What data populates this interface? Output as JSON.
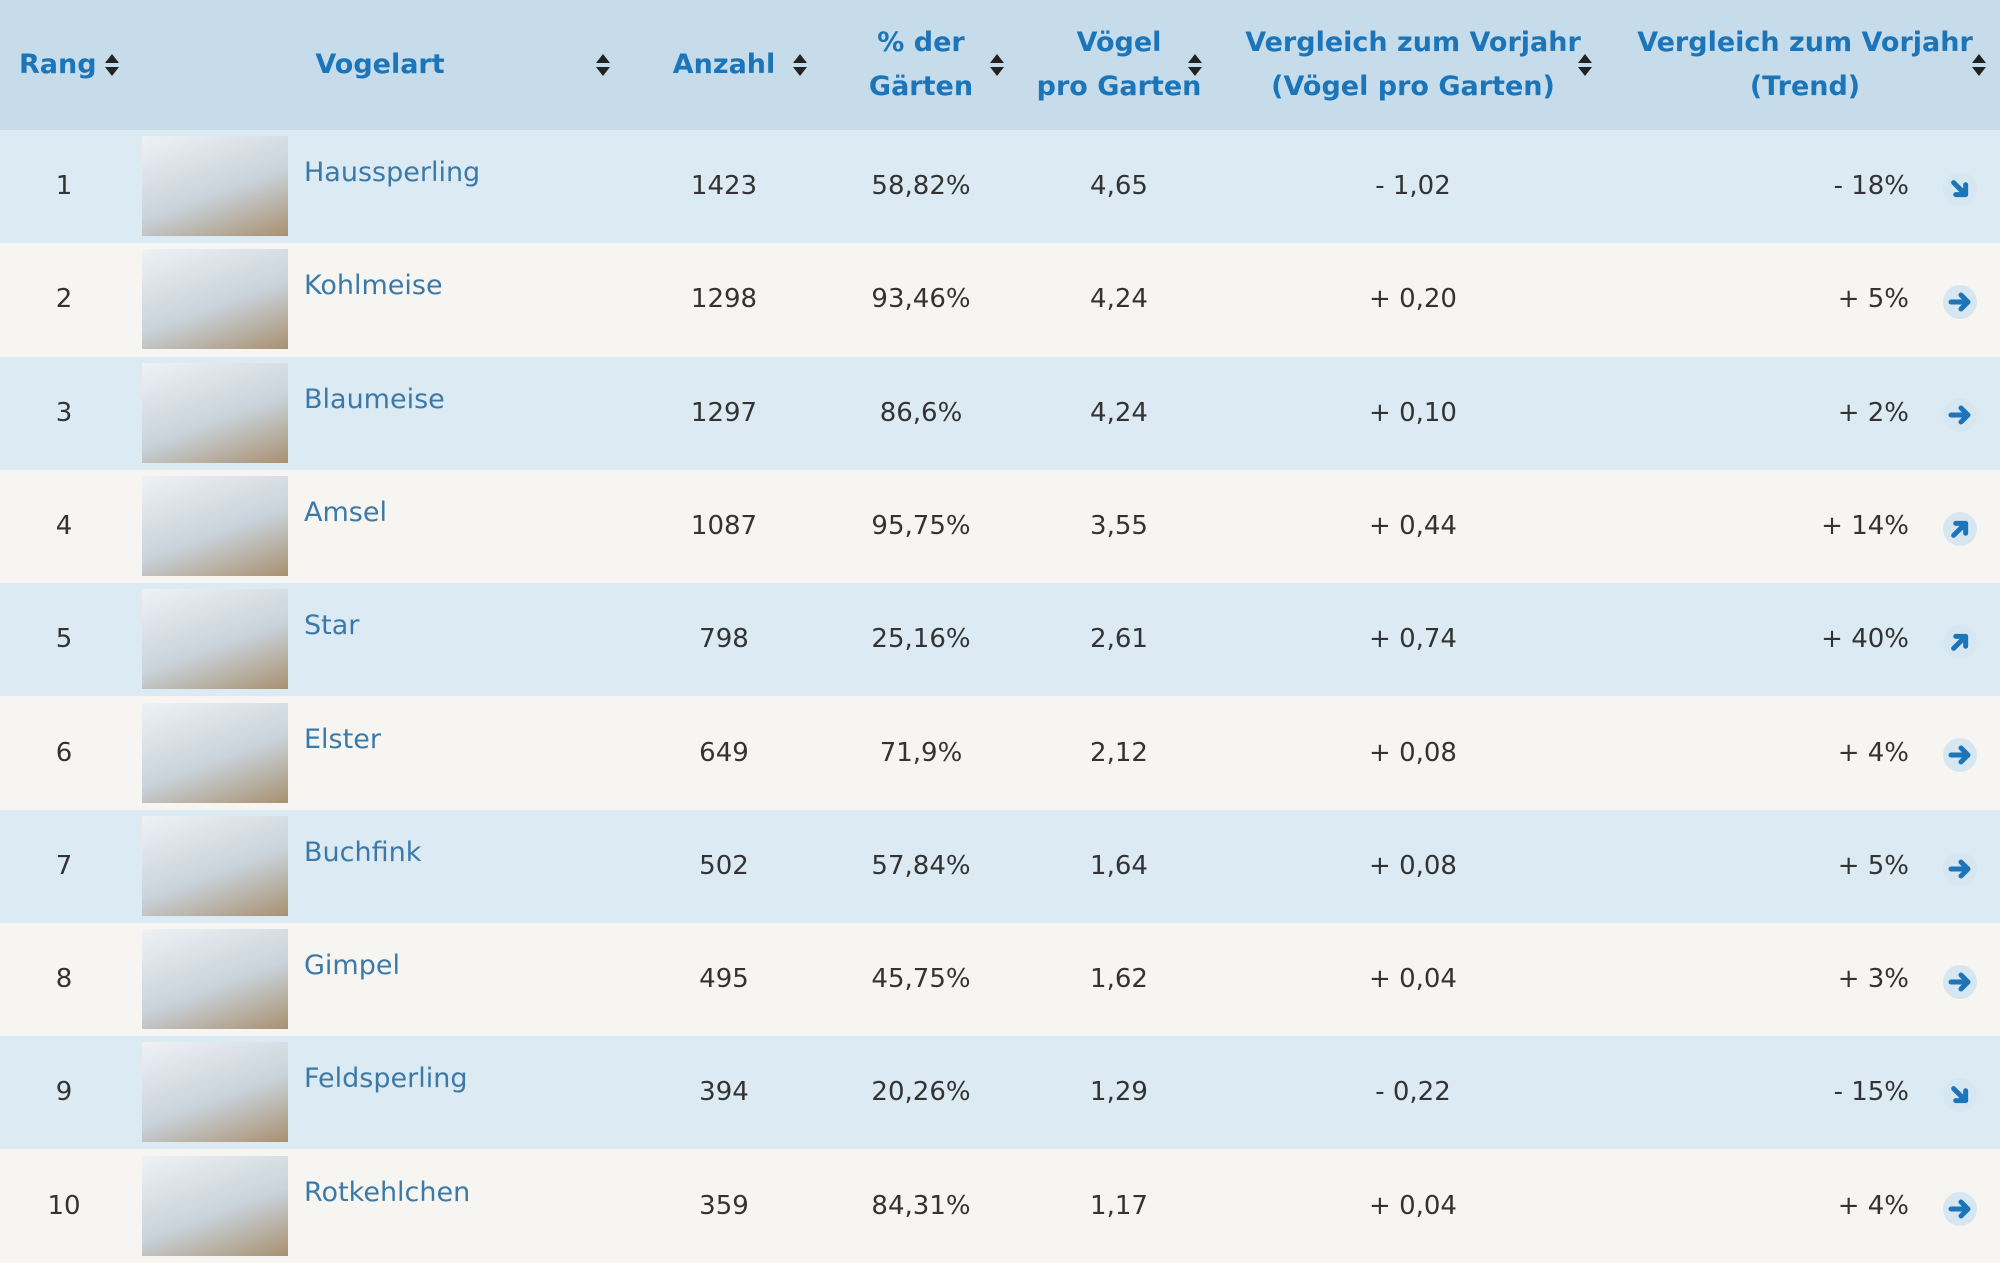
{
  "table": {
    "headers": [
      [
        "Rang"
      ],
      [
        "Vogelart"
      ],
      [
        "Anzahl"
      ],
      [
        "% der",
        "Gärten"
      ],
      [
        "Vögel",
        "pro Garten"
      ],
      [
        "Vergleich zum Vorjahr",
        "(Vögel pro Garten)"
      ],
      [
        "Vergleich zum Vorjahr",
        "(Trend)"
      ]
    ],
    "rows": [
      [
        "1",
        "Haussperling",
        "1423",
        "58,82%",
        "4,65",
        "- 1,02",
        "- 18%"
      ],
      [
        "2",
        "Kohlmeise",
        "1298",
        "93,46%",
        "4,24",
        "+ 0,20",
        "+ 5%"
      ],
      [
        "3",
        "Blaumeise",
        "1297",
        "86,6%",
        "4,24",
        "+ 0,10",
        "+ 2%"
      ],
      [
        "4",
        "Amsel",
        "1087",
        "95,75%",
        "3,55",
        "+ 0,44",
        "+ 14%"
      ],
      [
        "5",
        "Star",
        "798",
        "25,16%",
        "2,61",
        "+ 0,74",
        "+ 40%"
      ],
      [
        "6",
        "Elster",
        "649",
        "71,9%",
        "2,12",
        "+ 0,08",
        "+ 4%"
      ],
      [
        "7",
        "Buchfink",
        "502",
        "57,84%",
        "1,64",
        "+ 0,08",
        "+ 5%"
      ],
      [
        "8",
        "Gimpel",
        "495",
        "45,75%",
        "1,62",
        "+ 0,04",
        "+ 3%"
      ],
      [
        "9",
        "Feldsperling",
        "394",
        "20,26%",
        "1,29",
        "- 0,22",
        "- 15%"
      ],
      [
        "10",
        "Rotkehlchen",
        "359",
        "84,31%",
        "1,17",
        "+ 0,04",
        "+ 4%"
      ]
    ]
  }
}
